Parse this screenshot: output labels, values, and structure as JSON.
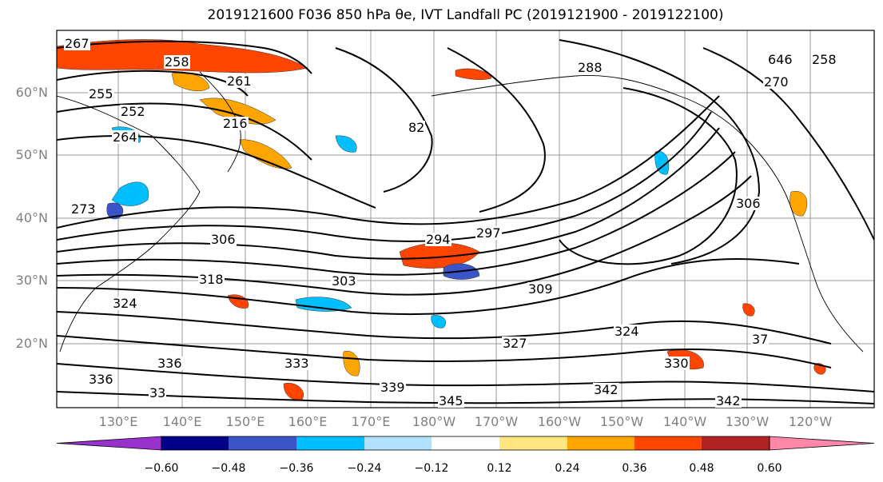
{
  "title": "2019121600 F036 850 hPa θe, IVT Landfall PC (2019121900 - 2019122100)",
  "map": {
    "type": "contour-map",
    "lat_labels": [
      "60°N",
      "50°N",
      "40°N",
      "30°N",
      "20°N"
    ],
    "lon_labels": [
      "130°E",
      "140°E",
      "150°E",
      "160°E",
      "170°E",
      "180°W",
      "170°W",
      "160°W",
      "150°W",
      "140°W",
      "130°W",
      "120°W"
    ],
    "contour_labels": [
      "267",
      "258",
      "261",
      "255",
      "252",
      "264",
      "216",
      "288",
      "646",
      "258",
      "270",
      "82",
      "273",
      "306",
      "294",
      "297",
      "303",
      "309",
      "306",
      "324",
      "324",
      "318",
      "327",
      "336",
      "333",
      "339",
      "345",
      "342",
      "342",
      "330",
      "336",
      "33",
      "37"
    ],
    "grid": true
  },
  "colorbar": {
    "colors": [
      "#9932cc",
      "#00008b",
      "#3a55c8",
      "#00bfff",
      "#b0e2ff",
      "#ffffff",
      "#ffe680",
      "#ffa500",
      "#ff4500",
      "#b22222",
      "#ff88aa"
    ],
    "ticks": [
      "−0.60",
      "−0.48",
      "−0.36",
      "−0.24",
      "−0.12",
      "0.12",
      "0.24",
      "0.36",
      "0.48",
      "0.60"
    ]
  }
}
